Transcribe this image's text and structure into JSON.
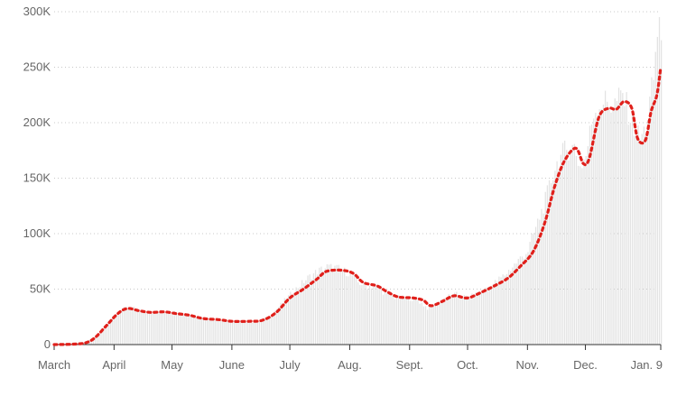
{
  "chart_data": {
    "type": "bar",
    "title": "",
    "xlabel": "",
    "ylabel": "",
    "ylim": [
      0,
      300000
    ],
    "xlim": [
      "2020-03-01",
      "2021-01-09"
    ],
    "grid": true,
    "y_ticks": [
      {
        "value": 0,
        "label": "0"
      },
      {
        "value": 50000,
        "label": "50K"
      },
      {
        "value": 100000,
        "label": "100K"
      },
      {
        "value": 150000,
        "label": "150K"
      },
      {
        "value": 200000,
        "label": "200K"
      },
      {
        "value": 250000,
        "label": "250K"
      },
      {
        "value": 300000,
        "label": "300K"
      }
    ],
    "x_ticks": [
      {
        "date": "2020-03-01",
        "label": "March"
      },
      {
        "date": "2020-04-01",
        "label": "April"
      },
      {
        "date": "2020-05-01",
        "label": "May"
      },
      {
        "date": "2020-06-01",
        "label": "June"
      },
      {
        "date": "2020-07-01",
        "label": "July"
      },
      {
        "date": "2020-08-01",
        "label": "Aug."
      },
      {
        "date": "2020-09-01",
        "label": "Sept."
      },
      {
        "date": "2020-10-01",
        "label": "Oct."
      },
      {
        "date": "2020-11-01",
        "label": "Nov."
      },
      {
        "date": "2020-12-01",
        "label": "Dec."
      },
      {
        "date": "2021-01-09",
        "label": "Jan. 9"
      }
    ],
    "series": [
      {
        "type": "bar",
        "color": "#e3e3e3",
        "points": [
          [
            "2020-03-01",
            0
          ],
          [
            "2020-03-10",
            500
          ],
          [
            "2020-03-15",
            1000
          ],
          [
            "2020-03-20",
            5000
          ],
          [
            "2020-03-25",
            12000
          ],
          [
            "2020-03-31",
            24000
          ],
          [
            "2020-04-05",
            32000
          ],
          [
            "2020-04-10",
            33000
          ],
          [
            "2020-04-15",
            30000
          ],
          [
            "2020-04-20",
            29000
          ],
          [
            "2020-04-25",
            30000
          ],
          [
            "2020-05-01",
            29500
          ],
          [
            "2020-05-05",
            28000
          ],
          [
            "2020-05-10",
            27000
          ],
          [
            "2020-05-15",
            25000
          ],
          [
            "2020-05-20",
            23000
          ],
          [
            "2020-05-25",
            22000
          ],
          [
            "2020-06-01",
            21000
          ],
          [
            "2020-06-05",
            21000
          ],
          [
            "2020-06-10",
            20500
          ],
          [
            "2020-06-15",
            21000
          ],
          [
            "2020-06-20",
            25000
          ],
          [
            "2020-06-25",
            34000
          ],
          [
            "2020-07-01",
            45000
          ],
          [
            "2020-07-05",
            52000
          ],
          [
            "2020-07-10",
            60000
          ],
          [
            "2020-07-15",
            66000
          ],
          [
            "2020-07-20",
            70000
          ],
          [
            "2020-07-25",
            69000
          ],
          [
            "2020-08-01",
            64000
          ],
          [
            "2020-08-05",
            56000
          ],
          [
            "2020-08-10",
            53000
          ],
          [
            "2020-08-15",
            52000
          ],
          [
            "2020-08-20",
            45000
          ],
          [
            "2020-08-25",
            42000
          ],
          [
            "2020-09-01",
            42000
          ],
          [
            "2020-09-05",
            40000
          ],
          [
            "2020-09-10",
            33000
          ],
          [
            "2020-09-15",
            37000
          ],
          [
            "2020-09-20",
            43000
          ],
          [
            "2020-09-25",
            45000
          ],
          [
            "2020-10-01",
            42000
          ],
          [
            "2020-10-05",
            45000
          ],
          [
            "2020-10-10",
            50000
          ],
          [
            "2020-10-15",
            56000
          ],
          [
            "2020-10-20",
            63000
          ],
          [
            "2020-10-25",
            72000
          ],
          [
            "2020-11-01",
            85000
          ],
          [
            "2020-11-05",
            105000
          ],
          [
            "2020-11-10",
            130000
          ],
          [
            "2020-11-15",
            160000
          ],
          [
            "2020-11-20",
            175000
          ],
          [
            "2020-11-25",
            178000
          ],
          [
            "2020-11-28",
            160000
          ],
          [
            "2020-12-01",
            170000
          ],
          [
            "2020-12-05",
            210000
          ],
          [
            "2020-12-10",
            220000
          ],
          [
            "2020-12-15",
            215000
          ],
          [
            "2020-12-20",
            225000
          ],
          [
            "2020-12-25",
            200000
          ],
          [
            "2020-12-29",
            185000
          ],
          [
            "2021-01-01",
            195000
          ],
          [
            "2021-01-05",
            240000
          ],
          [
            "2021-01-08",
            300000
          ],
          [
            "2021-01-09",
            270000
          ]
        ]
      },
      {
        "type": "line",
        "style": "dotted",
        "color": "#e0201b",
        "points": [
          [
            "2020-03-01",
            0
          ],
          [
            "2020-03-10",
            300
          ],
          [
            "2020-03-17",
            1500
          ],
          [
            "2020-03-22",
            6000
          ],
          [
            "2020-03-28",
            17000
          ],
          [
            "2020-04-03",
            28000
          ],
          [
            "2020-04-08",
            32500
          ],
          [
            "2020-04-14",
            30500
          ],
          [
            "2020-04-20",
            29000
          ],
          [
            "2020-04-27",
            29500
          ],
          [
            "2020-05-03",
            28000
          ],
          [
            "2020-05-10",
            26500
          ],
          [
            "2020-05-17",
            23500
          ],
          [
            "2020-05-25",
            22500
          ],
          [
            "2020-06-01",
            21000
          ],
          [
            "2020-06-10",
            21000
          ],
          [
            "2020-06-17",
            22000
          ],
          [
            "2020-06-24",
            29000
          ],
          [
            "2020-07-01",
            42000
          ],
          [
            "2020-07-08",
            50000
          ],
          [
            "2020-07-15",
            59000
          ],
          [
            "2020-07-20",
            66000
          ],
          [
            "2020-07-28",
            67000
          ],
          [
            "2020-08-03",
            64000
          ],
          [
            "2020-08-08",
            56000
          ],
          [
            "2020-08-15",
            53000
          ],
          [
            "2020-08-20",
            48000
          ],
          [
            "2020-08-26",
            43000
          ],
          [
            "2020-09-03",
            42000
          ],
          [
            "2020-09-08",
            40000
          ],
          [
            "2020-09-12",
            35000
          ],
          [
            "2020-09-18",
            39000
          ],
          [
            "2020-09-24",
            44000
          ],
          [
            "2020-10-01",
            42000
          ],
          [
            "2020-10-08",
            47000
          ],
          [
            "2020-10-15",
            53000
          ],
          [
            "2020-10-22",
            60000
          ],
          [
            "2020-10-28",
            70000
          ],
          [
            "2020-11-04",
            84000
          ],
          [
            "2020-11-10",
            110000
          ],
          [
            "2020-11-15",
            142000
          ],
          [
            "2020-11-20",
            165000
          ],
          [
            "2020-11-26",
            177000
          ],
          [
            "2020-11-30",
            163000
          ],
          [
            "2020-12-03",
            168000
          ],
          [
            "2020-12-08",
            205000
          ],
          [
            "2020-12-13",
            213000
          ],
          [
            "2020-12-17",
            212000
          ],
          [
            "2020-12-21",
            219000
          ],
          [
            "2020-12-25",
            213000
          ],
          [
            "2020-12-28",
            186000
          ],
          [
            "2021-01-01",
            184000
          ],
          [
            "2021-01-04",
            210000
          ],
          [
            "2021-01-07",
            225000
          ],
          [
            "2021-01-09",
            250000
          ]
        ]
      }
    ]
  }
}
